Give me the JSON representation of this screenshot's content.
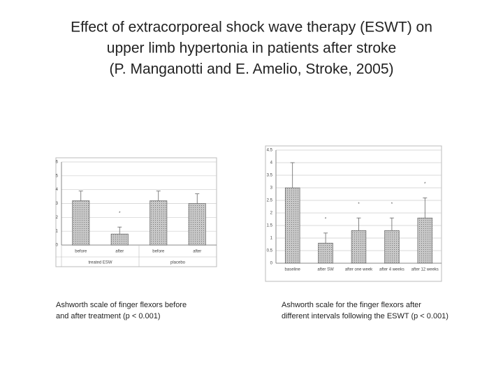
{
  "slide": {
    "title_lines": [
      "Effect of extracorporeal shock wave therapy (ESWT) on",
      "upper limb hypertonia in patients after stroke",
      "(P. Manganotti and E. Amelio, Stroke, 2005)"
    ]
  },
  "chart_data": [
    {
      "type": "bar",
      "categories": [
        "before",
        "after",
        "before",
        "after"
      ],
      "group_labels": [
        "treated ESW",
        "placebo"
      ],
      "series": [
        {
          "values": [
            3.2,
            0.8,
            3.2,
            3.0
          ],
          "errors": [
            0.7,
            0.5,
            0.7,
            0.7
          ],
          "color": "#b5b5b5"
        }
      ],
      "annotations": [
        null,
        "*",
        null,
        null
      ],
      "ylim": [
        0,
        6
      ],
      "yticks": [
        0,
        1,
        2,
        3,
        4,
        5,
        6
      ],
      "grid": true,
      "caption_lines": [
        "Ashworth scale of finger flexors before",
        " and after treatment (p < 0.001)"
      ]
    },
    {
      "type": "bar",
      "categories": [
        "baseline",
        "after SW",
        "after one week",
        "after 4 weeks",
        "after 12 weeks"
      ],
      "series": [
        {
          "values": [
            3.0,
            0.8,
            1.3,
            1.3,
            1.8
          ],
          "errors": [
            1.0,
            0.4,
            0.5,
            0.5,
            0.8
          ],
          "color": "#b5b5b5"
        }
      ],
      "annotations": [
        null,
        "*",
        "*",
        "*",
        "*"
      ],
      "ylim": [
        0,
        4.5
      ],
      "yticks": [
        0,
        0.5,
        1,
        1.5,
        2,
        2.5,
        3,
        3.5,
        4,
        4.5
      ],
      "grid": true,
      "caption_lines": [
        "Ashworth scale for the finger flexors after",
        "different intervals following the ESWT (p < 0.001)"
      ]
    }
  ]
}
